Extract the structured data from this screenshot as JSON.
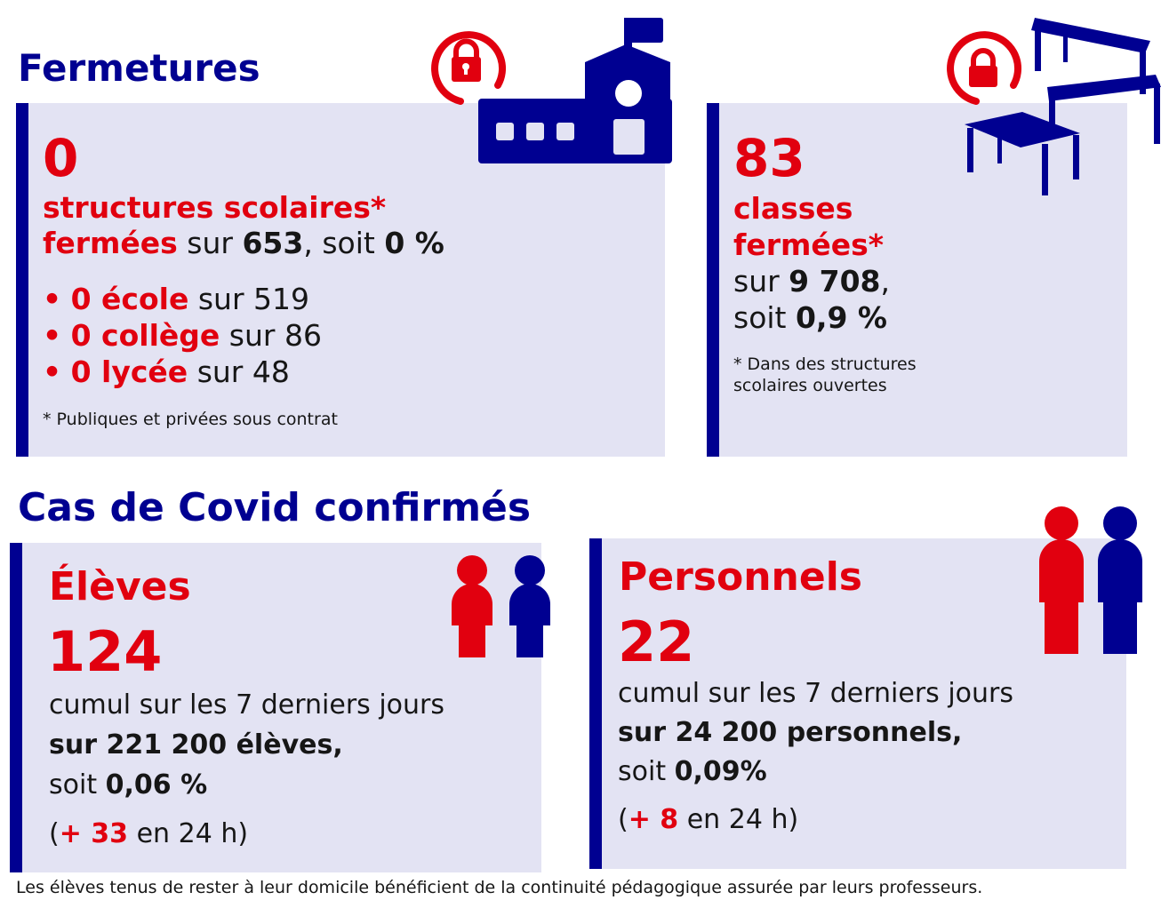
{
  "colors": {
    "navy": "#000091",
    "red": "#e1000f",
    "panel": "#e3e3f3"
  },
  "fermetures": {
    "title": "Fermetures",
    "structures": {
      "value": "0",
      "label1": "structures scolaires*",
      "label2": "fermées",
      "sur": " sur ",
      "total": "653",
      "soit": ", soit ",
      "pct": "0 %",
      "items": [
        {
          "bullet": "•",
          "value": "0 école",
          "rest": " sur 519"
        },
        {
          "bullet": "•",
          "value": "0 collège",
          "rest": " sur 86"
        },
        {
          "bullet": "•",
          "value": "0 lycée",
          "rest": " sur 48"
        }
      ],
      "note": "* Publiques et privées sous contrat"
    },
    "classes": {
      "value": "83",
      "label1": "classes",
      "label2": "fermées*",
      "sur": "sur ",
      "total": "9 708",
      "comma": ",",
      "soit": "soit ",
      "pct": "0,9 %",
      "note1": "* Dans des structures",
      "note2": "scolaires ouvertes"
    }
  },
  "covid": {
    "title": "Cas de Covid confirmés",
    "eleves": {
      "label": "Élèves",
      "value": "124",
      "cumul": "cumul sur les 7 derniers jours",
      "sur": "sur 221 200 élèves",
      "comma": ",",
      "soit": "soit ",
      "pct": "0,06 %",
      "open": "(",
      "plus": "+ 33",
      "rest": " en 24 h)"
    },
    "personnels": {
      "label": "Personnels",
      "value": "22",
      "cumul": "cumul sur les 7 derniers jours",
      "sur": "sur 24 200 personnels",
      "comma": ",",
      "soit": "soit ",
      "pct": "0,09%",
      "open": "(",
      "plus": "+ 8",
      "rest": " en 24 h)"
    }
  },
  "footer": "Les élèves tenus de rester à leur domicile bénéficient de la continuité pédagogique assurée par leurs professeurs."
}
